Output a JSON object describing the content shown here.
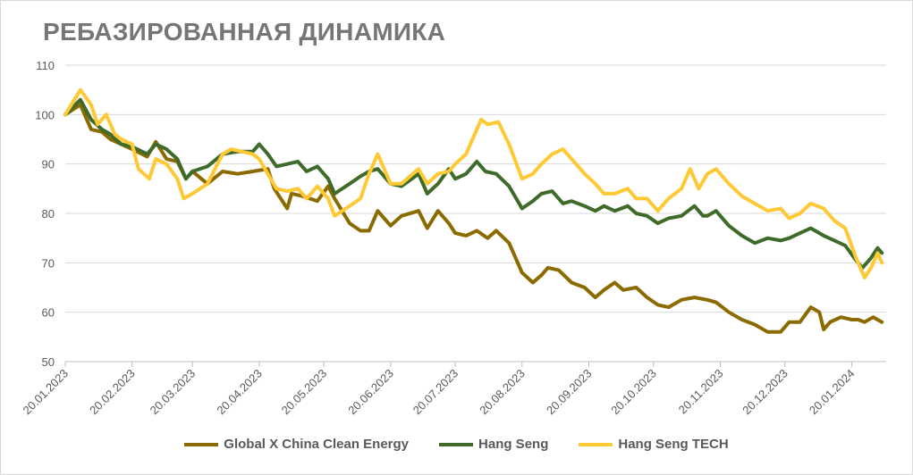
{
  "chart_data": {
    "type": "line",
    "title": "РЕБАЗИРОВАННАЯ ДИНАМИКА",
    "xlabel": "",
    "ylabel": "",
    "ylim": [
      50,
      110
    ],
    "yticks": [
      50,
      60,
      70,
      80,
      90,
      100,
      110
    ],
    "xlim": [
      "2023-01-20",
      "2024-02-05"
    ],
    "xticks": [
      "20.01.2023",
      "20.02.2023",
      "20.03.2023",
      "20.04.2023",
      "20.05.2023",
      "20.06.2023",
      "20.07.2023",
      "20.08.2023",
      "20.09.2023",
      "20.10.2023",
      "20.11.2023",
      "20.12.2023",
      "20.01.2024"
    ],
    "grid": "horizontal",
    "legend_position": "bottom",
    "series": [
      {
        "name": "Global X China Clean Energy",
        "color": "#8B6A00",
        "points": [
          [
            "2023-01-20",
            100
          ],
          [
            "2023-01-27",
            102
          ],
          [
            "2023-02-01",
            97
          ],
          [
            "2023-02-06",
            96.5
          ],
          [
            "2023-02-10",
            95
          ],
          [
            "2023-02-15",
            94
          ],
          [
            "2023-02-20",
            93
          ],
          [
            "2023-02-27",
            91.5
          ],
          [
            "2023-03-03",
            94.5
          ],
          [
            "2023-03-08",
            91
          ],
          [
            "2023-03-13",
            90.5
          ],
          [
            "2023-03-17",
            87
          ],
          [
            "2023-03-20",
            88.5
          ],
          [
            "2023-03-27",
            86
          ],
          [
            "2023-04-03",
            88.5
          ],
          [
            "2023-04-10",
            88
          ],
          [
            "2023-04-17",
            88.5
          ],
          [
            "2023-04-24",
            89
          ],
          [
            "2023-04-27",
            85
          ],
          [
            "2023-05-03",
            81
          ],
          [
            "2023-05-05",
            84
          ],
          [
            "2023-05-10",
            83.5
          ],
          [
            "2023-05-17",
            82.5
          ],
          [
            "2023-05-22",
            85.5
          ],
          [
            "2023-05-25",
            83
          ],
          [
            "2023-06-01",
            78
          ],
          [
            "2023-06-06",
            76.5
          ],
          [
            "2023-06-10",
            76.5
          ],
          [
            "2023-06-14",
            80.5
          ],
          [
            "2023-06-20",
            77.5
          ],
          [
            "2023-06-25",
            79.5
          ],
          [
            "2023-07-03",
            80.5
          ],
          [
            "2023-07-07",
            77
          ],
          [
            "2023-07-12",
            80.5
          ],
          [
            "2023-07-17",
            78
          ],
          [
            "2023-07-20",
            76
          ],
          [
            "2023-07-25",
            75.5
          ],
          [
            "2023-07-30",
            76.5
          ],
          [
            "2023-08-04",
            75
          ],
          [
            "2023-08-08",
            76.5
          ],
          [
            "2023-08-14",
            74
          ],
          [
            "2023-08-20",
            68
          ],
          [
            "2023-08-25",
            66
          ],
          [
            "2023-08-29",
            67.5
          ],
          [
            "2023-09-01",
            69
          ],
          [
            "2023-09-06",
            68.5
          ],
          [
            "2023-09-12",
            66
          ],
          [
            "2023-09-18",
            65
          ],
          [
            "2023-09-23",
            63
          ],
          [
            "2023-09-27",
            64.5
          ],
          [
            "2023-10-02",
            66
          ],
          [
            "2023-10-06",
            64.5
          ],
          [
            "2023-10-12",
            65
          ],
          [
            "2023-10-17",
            63
          ],
          [
            "2023-10-22",
            61.5
          ],
          [
            "2023-10-27",
            61
          ],
          [
            "2023-11-02",
            62.5
          ],
          [
            "2023-11-08",
            63
          ],
          [
            "2023-11-14",
            62.5
          ],
          [
            "2023-11-18",
            62
          ],
          [
            "2023-11-24",
            60
          ],
          [
            "2023-11-30",
            58.5
          ],
          [
            "2023-12-06",
            57.5
          ],
          [
            "2023-12-12",
            56
          ],
          [
            "2023-12-18",
            56
          ],
          [
            "2023-12-22",
            58
          ],
          [
            "2023-12-27",
            58
          ],
          [
            "2024-01-01",
            61
          ],
          [
            "2024-01-05",
            60
          ],
          [
            "2024-01-07",
            56.5
          ],
          [
            "2024-01-10",
            58
          ],
          [
            "2024-01-15",
            59
          ],
          [
            "2024-01-20",
            58.5
          ],
          [
            "2024-01-23",
            58.5
          ],
          [
            "2024-01-26",
            58
          ],
          [
            "2024-01-30",
            59
          ],
          [
            "2024-02-03",
            58
          ]
        ]
      },
      {
        "name": "Hang Seng",
        "color": "#3E6B2A",
        "points": [
          [
            "2023-01-20",
            100
          ],
          [
            "2023-01-27",
            103
          ],
          [
            "2023-02-01",
            99
          ],
          [
            "2023-02-06",
            97
          ],
          [
            "2023-02-10",
            96
          ],
          [
            "2023-02-15",
            94
          ],
          [
            "2023-02-20",
            93.5
          ],
          [
            "2023-02-27",
            92
          ],
          [
            "2023-03-03",
            94
          ],
          [
            "2023-03-08",
            93
          ],
          [
            "2023-03-13",
            91
          ],
          [
            "2023-03-17",
            87
          ],
          [
            "2023-03-20",
            88.5
          ],
          [
            "2023-03-27",
            89.5
          ],
          [
            "2023-04-03",
            92
          ],
          [
            "2023-04-10",
            92.5
          ],
          [
            "2023-04-17",
            92.5
          ],
          [
            "2023-04-20",
            94
          ],
          [
            "2023-04-24",
            92
          ],
          [
            "2023-04-28",
            89.5
          ],
          [
            "2023-05-03",
            90
          ],
          [
            "2023-05-08",
            90.5
          ],
          [
            "2023-05-12",
            88.5
          ],
          [
            "2023-05-17",
            89.5
          ],
          [
            "2023-05-22",
            87
          ],
          [
            "2023-05-25",
            84
          ],
          [
            "2023-06-01",
            86
          ],
          [
            "2023-06-06",
            87.5
          ],
          [
            "2023-06-10",
            88.5
          ],
          [
            "2023-06-14",
            89
          ],
          [
            "2023-06-20",
            86
          ],
          [
            "2023-06-25",
            85.5
          ],
          [
            "2023-07-03",
            88
          ],
          [
            "2023-07-07",
            84
          ],
          [
            "2023-07-12",
            86
          ],
          [
            "2023-07-17",
            89
          ],
          [
            "2023-07-20",
            87
          ],
          [
            "2023-07-25",
            88
          ],
          [
            "2023-07-30",
            90.5
          ],
          [
            "2023-08-03",
            88.5
          ],
          [
            "2023-08-08",
            88
          ],
          [
            "2023-08-14",
            85.5
          ],
          [
            "2023-08-20",
            81
          ],
          [
            "2023-08-25",
            82.5
          ],
          [
            "2023-08-29",
            84
          ],
          [
            "2023-09-03",
            84.5
          ],
          [
            "2023-09-08",
            82
          ],
          [
            "2023-09-12",
            82.5
          ],
          [
            "2023-09-18",
            81.5
          ],
          [
            "2023-09-23",
            80.5
          ],
          [
            "2023-09-27",
            81.5
          ],
          [
            "2023-10-02",
            80.5
          ],
          [
            "2023-10-08",
            81.5
          ],
          [
            "2023-10-12",
            80
          ],
          [
            "2023-10-17",
            79.5
          ],
          [
            "2023-10-22",
            78
          ],
          [
            "2023-10-27",
            79
          ],
          [
            "2023-11-02",
            79.5
          ],
          [
            "2023-11-08",
            81.5
          ],
          [
            "2023-11-12",
            79.5
          ],
          [
            "2023-11-14",
            79.5
          ],
          [
            "2023-11-18",
            80.5
          ],
          [
            "2023-11-24",
            77.5
          ],
          [
            "2023-11-30",
            75.5
          ],
          [
            "2023-12-06",
            74
          ],
          [
            "2023-12-12",
            75
          ],
          [
            "2023-12-18",
            74.5
          ],
          [
            "2023-12-22",
            75
          ],
          [
            "2023-12-27",
            76
          ],
          [
            "2024-01-01",
            77
          ],
          [
            "2024-01-07",
            75.5
          ],
          [
            "2024-01-12",
            74.5
          ],
          [
            "2024-01-17",
            73.5
          ],
          [
            "2024-01-22",
            70.5
          ],
          [
            "2024-01-25",
            69
          ],
          [
            "2024-01-29",
            71
          ],
          [
            "2024-02-01",
            73
          ],
          [
            "2024-02-03",
            72
          ]
        ]
      },
      {
        "name": "Hang Seng TECH",
        "color": "#FFC935",
        "points": [
          [
            "2023-01-20",
            100
          ],
          [
            "2023-01-27",
            105
          ],
          [
            "2023-02-01",
            102
          ],
          [
            "2023-02-04",
            98
          ],
          [
            "2023-02-08",
            100
          ],
          [
            "2023-02-12",
            96
          ],
          [
            "2023-02-15",
            95
          ],
          [
            "2023-02-20",
            94
          ],
          [
            "2023-02-23",
            89
          ],
          [
            "2023-02-28",
            87
          ],
          [
            "2023-03-03",
            91
          ],
          [
            "2023-03-08",
            90
          ],
          [
            "2023-03-13",
            87
          ],
          [
            "2023-03-16",
            83
          ],
          [
            "2023-03-20",
            84
          ],
          [
            "2023-03-27",
            86
          ],
          [
            "2023-04-03",
            92
          ],
          [
            "2023-04-07",
            93
          ],
          [
            "2023-04-12",
            92.5
          ],
          [
            "2023-04-17",
            92
          ],
          [
            "2023-04-20",
            91
          ],
          [
            "2023-04-24",
            88
          ],
          [
            "2023-04-28",
            85
          ],
          [
            "2023-05-03",
            84.5
          ],
          [
            "2023-05-08",
            85
          ],
          [
            "2023-05-12",
            83
          ],
          [
            "2023-05-17",
            85.5
          ],
          [
            "2023-05-22",
            83
          ],
          [
            "2023-05-25",
            79.5
          ],
          [
            "2023-06-01",
            81.5
          ],
          [
            "2023-06-06",
            83
          ],
          [
            "2023-06-10",
            88
          ],
          [
            "2023-06-14",
            92
          ],
          [
            "2023-06-20",
            86
          ],
          [
            "2023-06-25",
            86
          ],
          [
            "2023-07-03",
            89
          ],
          [
            "2023-07-07",
            86
          ],
          [
            "2023-07-12",
            88
          ],
          [
            "2023-07-17",
            88.5
          ],
          [
            "2023-07-20",
            90
          ],
          [
            "2023-07-25",
            92
          ],
          [
            "2023-07-30",
            97
          ],
          [
            "2023-08-01",
            99
          ],
          [
            "2023-08-04",
            98
          ],
          [
            "2023-08-09",
            98.5
          ],
          [
            "2023-08-14",
            94
          ],
          [
            "2023-08-20",
            87
          ],
          [
            "2023-08-25",
            88
          ],
          [
            "2023-08-29",
            90
          ],
          [
            "2023-09-03",
            92
          ],
          [
            "2023-09-08",
            93
          ],
          [
            "2023-09-12",
            91
          ],
          [
            "2023-09-18",
            88
          ],
          [
            "2023-09-23",
            86
          ],
          [
            "2023-09-27",
            84
          ],
          [
            "2023-10-02",
            84
          ],
          [
            "2023-10-08",
            85
          ],
          [
            "2023-10-12",
            83
          ],
          [
            "2023-10-17",
            83
          ],
          [
            "2023-10-22",
            80.5
          ],
          [
            "2023-10-27",
            83
          ],
          [
            "2023-11-02",
            85
          ],
          [
            "2023-11-06",
            89
          ],
          [
            "2023-11-10",
            85
          ],
          [
            "2023-11-14",
            88
          ],
          [
            "2023-11-18",
            89
          ],
          [
            "2023-11-24",
            86
          ],
          [
            "2023-11-30",
            83.5
          ],
          [
            "2023-12-06",
            82
          ],
          [
            "2023-12-12",
            80.5
          ],
          [
            "2023-12-18",
            81
          ],
          [
            "2023-12-22",
            79
          ],
          [
            "2023-12-27",
            80
          ],
          [
            "2024-01-01",
            82
          ],
          [
            "2024-01-07",
            81
          ],
          [
            "2024-01-12",
            78.5
          ],
          [
            "2024-01-17",
            77
          ],
          [
            "2024-01-22",
            71
          ],
          [
            "2024-01-26",
            67
          ],
          [
            "2024-01-29",
            69
          ],
          [
            "2024-02-01",
            72
          ],
          [
            "2024-02-03",
            70
          ]
        ]
      }
    ]
  }
}
